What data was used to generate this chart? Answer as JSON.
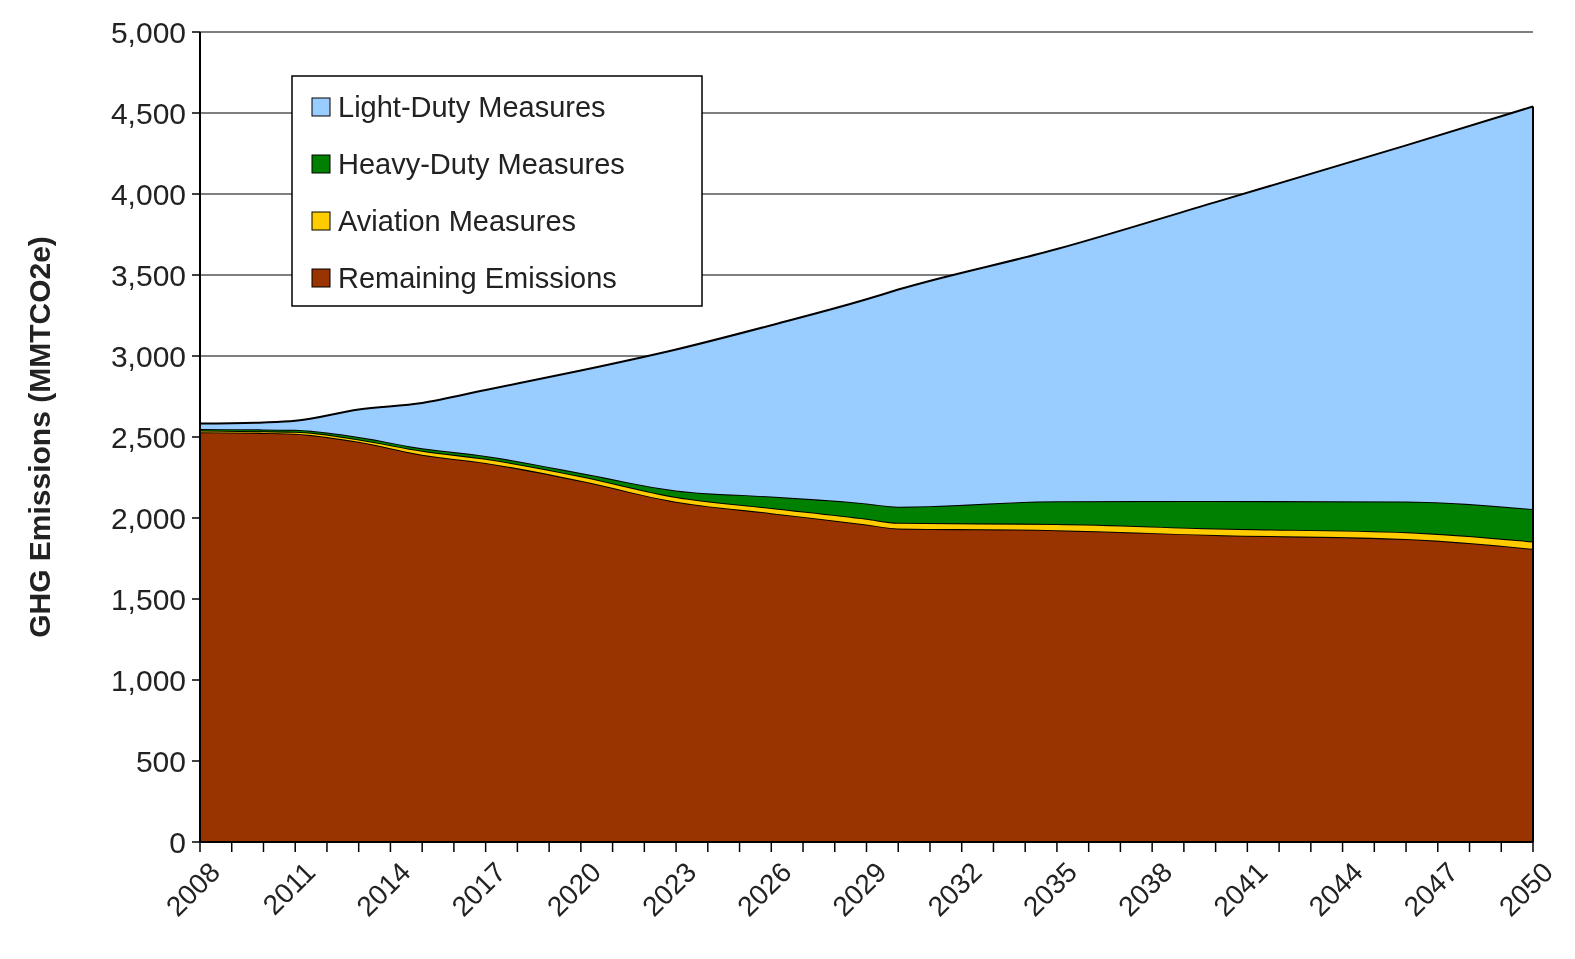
{
  "chart_data": {
    "type": "area",
    "stacked": true,
    "ylabel": "GHG Emissions (MMTCO2e)",
    "x": [
      2008,
      2010,
      2011,
      2013,
      2015,
      2017,
      2020,
      2023,
      2026,
      2029,
      2030,
      2035,
      2040,
      2046,
      2050
    ],
    "series": [
      {
        "name": "Remaining Emissions",
        "color": "#993300",
        "values": [
          2530,
          2525,
          2520,
          2470,
          2390,
          2340,
          2230,
          2100,
          2030,
          1960,
          1935,
          1925,
          1895,
          1870,
          1810
        ]
      },
      {
        "name": "Aviation Measures",
        "color": "#ffcc00",
        "values": [
          10,
          10,
          12,
          15,
          25,
          25,
          28,
          30,
          32,
          35,
          35,
          38,
          40,
          42,
          45
        ]
      },
      {
        "name": "Heavy-Duty Measures",
        "color": "#008000",
        "values": [
          10,
          12,
          12,
          15,
          15,
          18,
          20,
          40,
          70,
          95,
          100,
          140,
          170,
          190,
          200
        ]
      },
      {
        "name": "Light-Duty Measures",
        "color": "#99ccff",
        "values": [
          33,
          43,
          56,
          170,
          280,
          407,
          632,
          870,
          1058,
          1260,
          1340,
          1557,
          1845,
          2198,
          2485
        ]
      }
    ],
    "xlim": [
      2008,
      2050
    ],
    "xticks": [
      2008,
      {
        "value": 2009,
        "label": null
      },
      {
        "value": 2010,
        "label": null
      },
      2011,
      {
        "value": 2012,
        "label": null
      },
      {
        "value": 2013,
        "label": null
      },
      2014,
      {
        "value": 2015,
        "label": null
      },
      {
        "value": 2016,
        "label": null
      },
      2017,
      {
        "value": 2018,
        "label": null
      },
      {
        "value": 2019,
        "label": null
      },
      2020,
      {
        "value": 2021,
        "label": null
      },
      {
        "value": 2022,
        "label": null
      },
      2023,
      {
        "value": 2024,
        "label": null
      },
      {
        "value": 2025,
        "label": null
      },
      2026,
      {
        "value": 2027,
        "label": null
      },
      {
        "value": 2028,
        "label": null
      },
      2029,
      {
        "value": 2030,
        "label": null
      },
      {
        "value": 2031,
        "label": null
      },
      2032,
      {
        "value": 2033,
        "label": null
      },
      {
        "value": 2034,
        "label": null
      },
      2035,
      {
        "value": 2036,
        "label": null
      },
      {
        "value": 2037,
        "label": null
      },
      2038,
      {
        "value": 2039,
        "label": null
      },
      {
        "value": 2040,
        "label": null
      },
      2041,
      {
        "value": 2042,
        "label": null
      },
      {
        "value": 2043,
        "label": null
      },
      2044,
      {
        "value": 2045,
        "label": null
      },
      {
        "value": 2046,
        "label": null
      },
      2047,
      {
        "value": 2048,
        "label": null
      },
      {
        "value": 2049,
        "label": null
      },
      2050
    ],
    "ylim": [
      0,
      5000
    ],
    "yticks": [
      0,
      500,
      {
        "value": 1000,
        "label": "1,000"
      },
      {
        "value": 1500,
        "label": "1,500"
      },
      {
        "value": 2000,
        "label": "2,000"
      },
      {
        "value": 2500,
        "label": "2,500"
      },
      {
        "value": 3000,
        "label": "3,000"
      },
      {
        "value": 3500,
        "label": "3,500"
      },
      {
        "value": 4000,
        "label": "4,000"
      },
      {
        "value": 4500,
        "label": "4,500"
      },
      {
        "value": 5000,
        "label": "5,000"
      }
    ],
    "grid": "y",
    "legend": "top left"
  }
}
